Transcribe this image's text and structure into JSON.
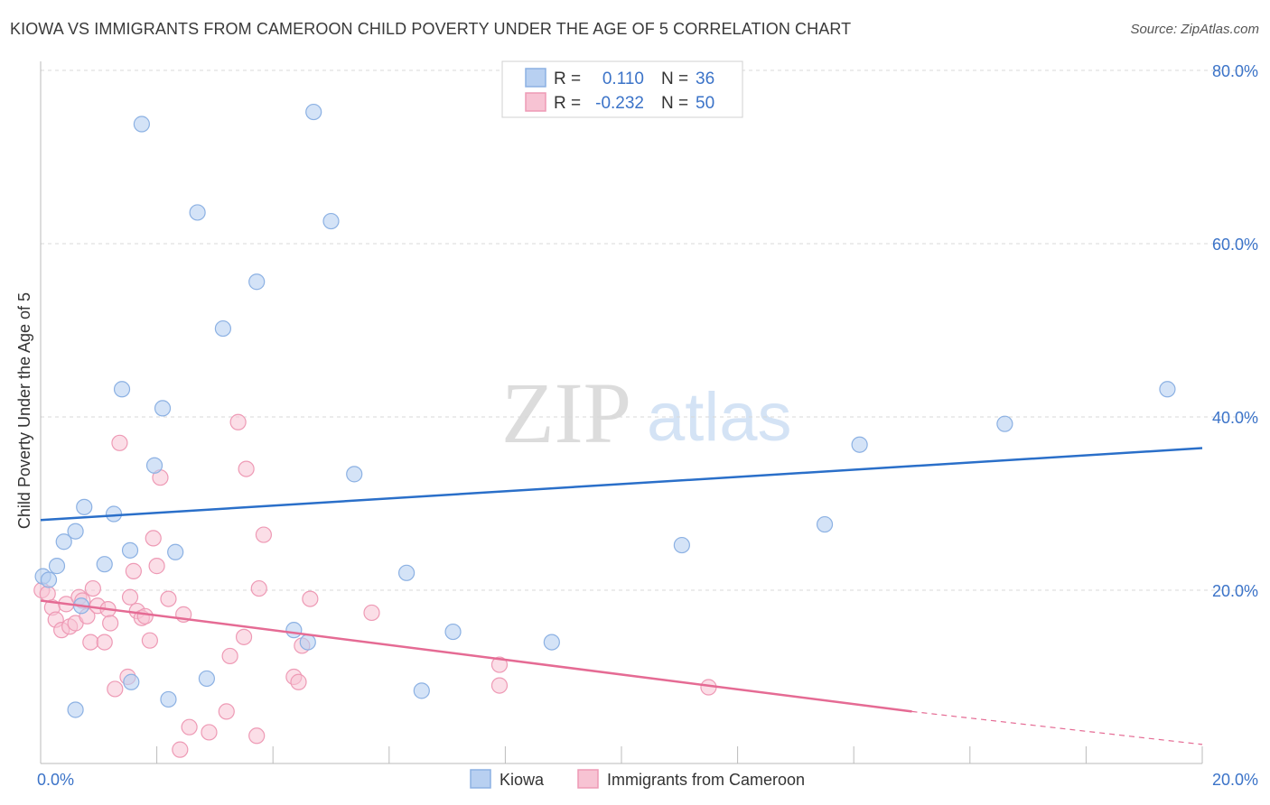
{
  "header": {
    "title": "KIOWA VS IMMIGRANTS FROM CAMEROON CHILD POVERTY UNDER THE AGE OF 5 CORRELATION CHART",
    "source": "Source: ZipAtlas.com"
  },
  "watermark": {
    "zip": "ZIP",
    "atlas": "atlas"
  },
  "colors": {
    "blue_fill": "#b8d0f1",
    "blue_stroke": "#8cb1e3",
    "blue_line": "#2a6fc9",
    "pink_fill": "#f7c3d3",
    "pink_stroke": "#ee9ab5",
    "pink_line": "#e56b94",
    "value_text": "#3b73c8",
    "label_text": "#333333",
    "grid": "#d8d8d8"
  },
  "stats_legend": {
    "rows": [
      {
        "r_label": "R =",
        "r_value": "0.110",
        "n_label": "N =",
        "n_value": "36"
      },
      {
        "r_label": "R =",
        "r_value": "-0.232",
        "n_label": "N =",
        "n_value": "50"
      }
    ]
  },
  "bottom_legend": {
    "items": [
      "Kiowa",
      "Immigrants from Cameroon"
    ]
  },
  "chart_data": {
    "type": "scatter",
    "title": "KIOWA VS IMMIGRANTS FROM CAMEROON CHILD POVERTY UNDER THE AGE OF 5 CORRELATION CHART",
    "xlabel": "",
    "ylabel": "Child Poverty Under the Age of 5",
    "xlim": [
      0,
      20
    ],
    "ylim": [
      0,
      80
    ],
    "x_tick_labels": [
      {
        "value": 0,
        "label": "0.0%"
      },
      {
        "value": 20,
        "label": "20.0%"
      }
    ],
    "y_tick_labels": [
      {
        "value": 20,
        "label": "20.0%"
      },
      {
        "value": 40,
        "label": "40.0%"
      },
      {
        "value": 60,
        "label": "60.0%"
      },
      {
        "value": 80,
        "label": "80.0%"
      }
    ],
    "series": [
      {
        "name": "Kiowa",
        "color": "#b8d0f1",
        "trend": {
          "x": [
            0,
            20
          ],
          "y": [
            28.1,
            36.4
          ],
          "dashed_from": null
        },
        "points": [
          [
            0.04,
            21.6
          ],
          [
            0.14,
            21.2
          ],
          [
            0.28,
            22.8
          ],
          [
            0.4,
            25.6
          ],
          [
            0.6,
            26.8
          ],
          [
            0.7,
            18.2
          ],
          [
            0.75,
            29.6
          ],
          [
            1.1,
            23.0
          ],
          [
            1.26,
            28.8
          ],
          [
            1.4,
            43.2
          ],
          [
            1.54,
            24.6
          ],
          [
            1.56,
            9.4
          ],
          [
            1.74,
            73.8
          ],
          [
            1.96,
            34.4
          ],
          [
            2.1,
            41.0
          ],
          [
            2.2,
            7.4
          ],
          [
            2.32,
            24.4
          ],
          [
            2.7,
            63.6
          ],
          [
            2.86,
            9.8
          ],
          [
            3.14,
            50.2
          ],
          [
            3.72,
            55.6
          ],
          [
            4.36,
            15.4
          ],
          [
            4.6,
            14.0
          ],
          [
            4.7,
            75.2
          ],
          [
            5.0,
            62.6
          ],
          [
            5.4,
            33.4
          ],
          [
            6.3,
            22.0
          ],
          [
            6.56,
            8.4
          ],
          [
            7.1,
            15.2
          ],
          [
            8.8,
            14.0
          ],
          [
            11.04,
            25.2
          ],
          [
            13.5,
            27.6
          ],
          [
            14.1,
            36.8
          ],
          [
            16.6,
            39.2
          ],
          [
            19.4,
            43.2
          ],
          [
            0.6,
            6.2
          ]
        ]
      },
      {
        "name": "Immigrants from Cameroon",
        "color": "#f7c3d3",
        "trend": {
          "x": [
            0,
            15
          ],
          "y": [
            18.8,
            6.0
          ],
          "dashed_to": [
            20,
            2.2
          ]
        },
        "points": [
          [
            0.02,
            20.0
          ],
          [
            0.12,
            19.6
          ],
          [
            0.2,
            18.0
          ],
          [
            0.26,
            16.6
          ],
          [
            0.36,
            15.4
          ],
          [
            0.44,
            18.4
          ],
          [
            0.5,
            15.8
          ],
          [
            0.6,
            16.2
          ],
          [
            0.66,
            19.2
          ],
          [
            0.72,
            18.8
          ],
          [
            0.8,
            17.0
          ],
          [
            0.86,
            14.0
          ],
          [
            0.9,
            20.2
          ],
          [
            0.98,
            18.2
          ],
          [
            1.1,
            14.0
          ],
          [
            1.16,
            17.8
          ],
          [
            1.2,
            16.2
          ],
          [
            1.28,
            8.6
          ],
          [
            1.36,
            37.0
          ],
          [
            1.5,
            10.0
          ],
          [
            1.54,
            19.2
          ],
          [
            1.6,
            22.2
          ],
          [
            1.66,
            17.6
          ],
          [
            1.74,
            16.8
          ],
          [
            1.8,
            17.0
          ],
          [
            1.88,
            14.2
          ],
          [
            1.94,
            26.0
          ],
          [
            2.0,
            22.8
          ],
          [
            2.06,
            33.0
          ],
          [
            2.2,
            19.0
          ],
          [
            2.4,
            1.6
          ],
          [
            2.46,
            17.2
          ],
          [
            2.56,
            4.2
          ],
          [
            2.9,
            3.6
          ],
          [
            3.2,
            6.0
          ],
          [
            3.26,
            12.4
          ],
          [
            3.4,
            39.4
          ],
          [
            3.5,
            14.6
          ],
          [
            3.54,
            34.0
          ],
          [
            3.72,
            3.2
          ],
          [
            3.76,
            20.2
          ],
          [
            3.84,
            26.4
          ],
          [
            4.36,
            10.0
          ],
          [
            4.44,
            9.4
          ],
          [
            4.5,
            13.6
          ],
          [
            4.64,
            19.0
          ],
          [
            5.7,
            17.4
          ],
          [
            7.9,
            11.4
          ],
          [
            7.9,
            9.0
          ],
          [
            11.5,
            8.8
          ]
        ]
      }
    ],
    "legend": [
      "Kiowa",
      "Immigrants from Cameroon"
    ]
  }
}
